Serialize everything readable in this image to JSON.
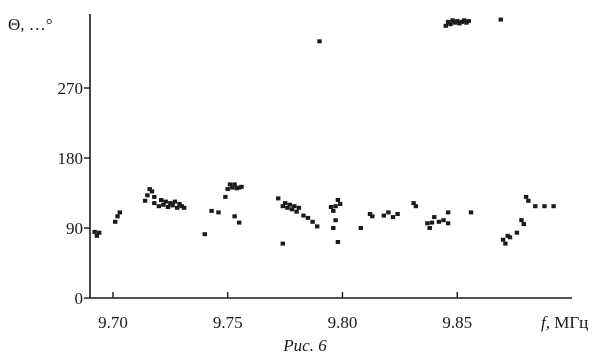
{
  "caption": "Рис. 6",
  "chart_data": {
    "type": "scatter",
    "title": "",
    "ylabel": "Θ, …°",
    "xlabel_var": "f",
    "xlabel_unit": ", МГц",
    "xlim": [
      9.69,
      9.9
    ],
    "ylim": [
      0,
      360
    ],
    "xticks": [
      "9.70",
      "9.75",
      "9.80",
      "9.85"
    ],
    "yticks": [
      "0",
      "90",
      "180",
      "270"
    ],
    "grid": false,
    "series": [
      {
        "points": [
          [
            9.692,
            85
          ],
          [
            9.693,
            80
          ],
          [
            9.694,
            84
          ],
          [
            9.701,
            98
          ],
          [
            9.702,
            105
          ],
          [
            9.703,
            110
          ],
          [
            9.714,
            125
          ],
          [
            9.715,
            132
          ],
          [
            9.716,
            140
          ],
          [
            9.717,
            137
          ],
          [
            9.718,
            130
          ],
          [
            9.718,
            122
          ],
          [
            9.72,
            118
          ],
          [
            9.721,
            126
          ],
          [
            9.722,
            120
          ],
          [
            9.723,
            124
          ],
          [
            9.724,
            117
          ],
          [
            9.725,
            122
          ],
          [
            9.726,
            119
          ],
          [
            9.727,
            124
          ],
          [
            9.728,
            116
          ],
          [
            9.729,
            121
          ],
          [
            9.73,
            118
          ],
          [
            9.731,
            116
          ],
          [
            9.74,
            82
          ],
          [
            9.743,
            112
          ],
          [
            9.746,
            110
          ],
          [
            9.749,
            130
          ],
          [
            9.75,
            140
          ],
          [
            9.751,
            146
          ],
          [
            9.752,
            142
          ],
          [
            9.753,
            146
          ],
          [
            9.754,
            141
          ],
          [
            9.755,
            142
          ],
          [
            9.756,
            143
          ],
          [
            9.753,
            105
          ],
          [
            9.755,
            97
          ],
          [
            9.774,
            70
          ],
          [
            9.772,
            128
          ],
          [
            9.774,
            118
          ],
          [
            9.775,
            122
          ],
          [
            9.776,
            116
          ],
          [
            9.777,
            120
          ],
          [
            9.778,
            114
          ],
          [
            9.779,
            118
          ],
          [
            9.78,
            111
          ],
          [
            9.781,
            116
          ],
          [
            9.783,
            106
          ],
          [
            9.785,
            103
          ],
          [
            9.787,
            98
          ],
          [
            9.789,
            92
          ],
          [
            9.79,
            330
          ],
          [
            9.795,
            117
          ],
          [
            9.796,
            112
          ],
          [
            9.797,
            118
          ],
          [
            9.798,
            126
          ],
          [
            9.799,
            121
          ],
          [
            9.797,
            100
          ],
          [
            9.796,
            90
          ],
          [
            9.798,
            72
          ],
          [
            9.808,
            90
          ],
          [
            9.812,
            108
          ],
          [
            9.813,
            105
          ],
          [
            9.818,
            106
          ],
          [
            9.82,
            110
          ],
          [
            9.822,
            104
          ],
          [
            9.824,
            108
          ],
          [
            9.831,
            122
          ],
          [
            9.832,
            118
          ],
          [
            9.837,
            96
          ],
          [
            9.838,
            90
          ],
          [
            9.839,
            97
          ],
          [
            9.84,
            104
          ],
          [
            9.842,
            98
          ],
          [
            9.844,
            100
          ],
          [
            9.846,
            96
          ],
          [
            9.846,
            110
          ],
          [
            9.845,
            350
          ],
          [
            9.846,
            355
          ],
          [
            9.847,
            352
          ],
          [
            9.848,
            357
          ],
          [
            9.849,
            354
          ],
          [
            9.85,
            356
          ],
          [
            9.851,
            353
          ],
          [
            9.852,
            355
          ],
          [
            9.853,
            357
          ],
          [
            9.854,
            354
          ],
          [
            9.855,
            356
          ],
          [
            9.856,
            110
          ],
          [
            9.869,
            358
          ],
          [
            9.87,
            75
          ],
          [
            9.871,
            70
          ],
          [
            9.872,
            80
          ],
          [
            9.873,
            78
          ],
          [
            9.876,
            84
          ],
          [
            9.878,
            100
          ],
          [
            9.879,
            95
          ],
          [
            9.88,
            130
          ],
          [
            9.881,
            125
          ],
          [
            9.884,
            118
          ],
          [
            9.888,
            118
          ],
          [
            9.892,
            118
          ]
        ]
      }
    ]
  }
}
